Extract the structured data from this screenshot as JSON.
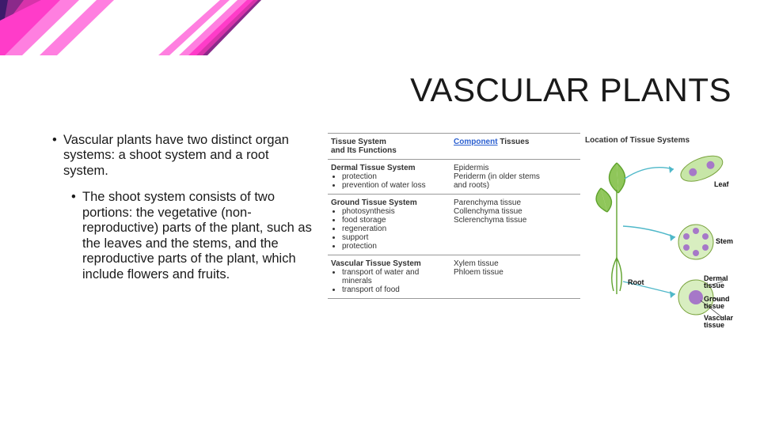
{
  "stripes": {
    "colors": [
      "#3d1b6b",
      "#8a2a8a",
      "#d733aa",
      "#ff3cc9",
      "#ff7fe0",
      "#ffffff"
    ],
    "bg": "#ffffff"
  },
  "title": "VASCULAR PLANTS",
  "bullets": {
    "b1": "Vascular plants have two distinct organ systems: a shoot system and a root system.",
    "b2": "The shoot system consists of two portions: the vegetative (non-reproductive) parts of the plant, such as the leaves and the stems, and the reproductive parts of the plant, which include flowers and fruits."
  },
  "table": {
    "header": {
      "c1a": "Tissue System",
      "c1b": "and Its Functions",
      "c2a": "Component",
      "c2b": "Tissues"
    },
    "rows": [
      {
        "title": "Dermal Tissue System",
        "items": [
          "protection",
          "prevention of water loss"
        ],
        "c2": "Epidermis\nPeriderm (in older stems and roots)"
      },
      {
        "title": "Ground Tissue System",
        "items": [
          "photosynthesis",
          "food storage",
          "regeneration",
          "support",
          "protection"
        ],
        "c2": "Parenchyma tissue\nCollenchyma tissue\nSclerenchyma tissue"
      },
      {
        "title": "Vascular Tissue System",
        "items": [
          "transport of water and minerals",
          "transport of food"
        ],
        "c2": "Xylem tissue\nPhloem tissue"
      }
    ],
    "col3_header": "Location of Tissue Systems"
  },
  "diagram": {
    "labels": {
      "leaf": "Leaf",
      "stem": "Stem",
      "root": "Root",
      "dermal": "Dermal tissue",
      "ground": "Ground tissue",
      "vascular": "Vascular tissue"
    },
    "colors": {
      "green": "#5fa22d",
      "purple": "#a678c8",
      "outline": "#7aa33e",
      "gray": "#888888",
      "arrow": "#4fb8c9"
    }
  }
}
